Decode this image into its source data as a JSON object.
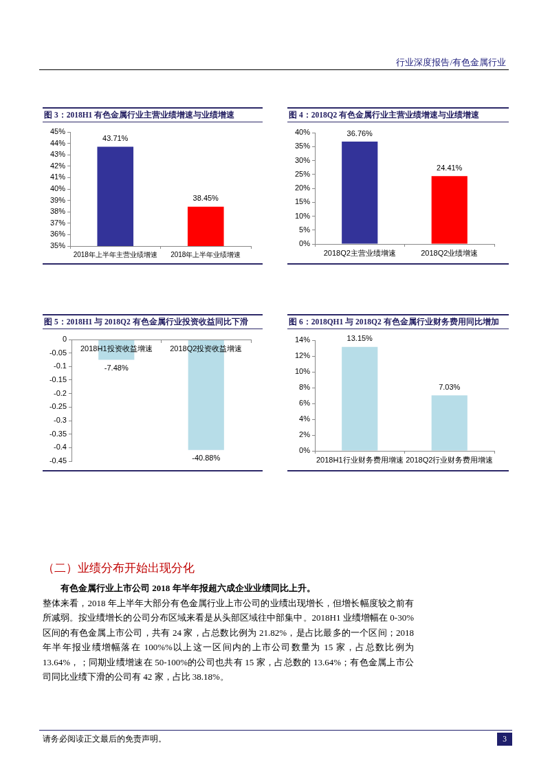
{
  "chart_data": [
    {
      "type": "other",
      "title": "行业深度报告/有色金属行业"
    },
    {
      "type": "bar",
      "title": "图 3：2018H1 有色金属行业主营业绩增速与业绩增速",
      "categories": [
        "2018年上半年主营业绩增速",
        "2018年上半年业绩增速"
      ],
      "values": [
        43.71,
        38.45
      ],
      "colors": [
        "#333399",
        "#ff0000"
      ],
      "value_labels": [
        "43.71%",
        "38.45%"
      ],
      "ylim": [
        35,
        45
      ],
      "yticks": [
        {
          "value": 35,
          "label": "35%"
        },
        {
          "value": 36,
          "label": "36%"
        },
        {
          "value": 37,
          "label": "37%"
        },
        {
          "value": 38,
          "label": "38%"
        },
        {
          "value": 39,
          "label": "39%"
        },
        {
          "value": 40,
          "label": "40%"
        },
        {
          "value": 41,
          "label": "41%"
        },
        {
          "value": 42,
          "label": "42%"
        },
        {
          "value": 43,
          "label": "43%"
        },
        {
          "value": 44,
          "label": "44%"
        },
        {
          "value": 45,
          "label": "45%"
        }
      ]
    },
    {
      "type": "bar",
      "title": "图 4：2018Q2 有色金属行业主营业绩增速与业绩增速",
      "categories": [
        "2018Q2主营业绩增速",
        "2018Q2业绩增速"
      ],
      "values": [
        36.76,
        24.41
      ],
      "colors": [
        "#333399",
        "#ff0000"
      ],
      "value_labels": [
        "36.76%",
        "24.41%"
      ],
      "ylim": [
        0,
        40
      ],
      "yticks": [
        {
          "value": 0,
          "label": "0%"
        },
        {
          "value": 5,
          "label": "5%"
        },
        {
          "value": 10,
          "label": "10%"
        },
        {
          "value": 15,
          "label": "15%"
        },
        {
          "value": 20,
          "label": "20%"
        },
        {
          "value": 25,
          "label": "25%"
        },
        {
          "value": 30,
          "label": "30%"
        },
        {
          "value": 35,
          "label": "35%"
        },
        {
          "value": 40,
          "label": "40%"
        }
      ]
    },
    {
      "type": "bar",
      "title": "图 5：2018H1 与 2018Q2 有色金属行业投资收益同比下滑",
      "categories": [
        "2018H1投资收益增速",
        "2018Q2投资收益增速"
      ],
      "values": [
        -0.0748,
        -0.4088
      ],
      "color": "#b7dde8",
      "value_labels": [
        "-7.48%",
        "-40.88%"
      ],
      "ylim": [
        -0.45,
        0
      ],
      "yticks": [
        0,
        -0.05,
        -0.1,
        -0.15,
        -0.2,
        -0.25,
        -0.3,
        -0.35,
        -0.4,
        -0.45
      ]
    },
    {
      "type": "bar",
      "title": "图 6：2018QH1 与 2018Q2 有色金属行业财务费用同比增加",
      "categories": [
        "2018H1行业财务费用增速",
        "2018Q2行业财务费用增速"
      ],
      "values": [
        13.15,
        7.03
      ],
      "color": "#b7dde8",
      "value_labels": [
        "13.15%",
        "7.03%"
      ],
      "ylim": [
        0,
        14
      ],
      "yticks": [
        {
          "value": 0,
          "label": "0%"
        },
        {
          "value": 2,
          "label": "2%"
        },
        {
          "value": 4,
          "label": "4%"
        },
        {
          "value": 6,
          "label": "6%"
        },
        {
          "value": 8,
          "label": "8%"
        },
        {
          "value": 10,
          "label": "10%"
        },
        {
          "value": 12,
          "label": "12%"
        },
        {
          "value": 14,
          "label": "14%"
        }
      ]
    },
    {
      "type": "other",
      "title": "（二）业绩分布开始出现分化",
      "annotations": [
        "有色金属行业上市公司 2018 年半年报超六成企业业绩同比上升。",
        "整体来看，2018 年上半年大部分有色金属行业上市公司的业绩出现增长，但增长幅度较之前有所减弱。按业绩增长的公司分布区域来看是从头部区域往中部集中。2018H1 业绩增幅在 0-30%区间的有色金属上市公司，共有 24 家，占总数比例为 21.82%，是占比最多的一个区间；2018 年半年报业绩增幅落在 100%%以上这一区间内的上市公司数量为 15 家，占总数比例为 13.64%，；同期业绩增速在 50-100%的公司也共有 15 家，占总数的 13.64%；有色金属上市公司同比业绩下滑的公司有 42 家，占比 38.18%。",
        "请务必阅读正文最后的免责声明。",
        "3"
      ]
    }
  ]
}
